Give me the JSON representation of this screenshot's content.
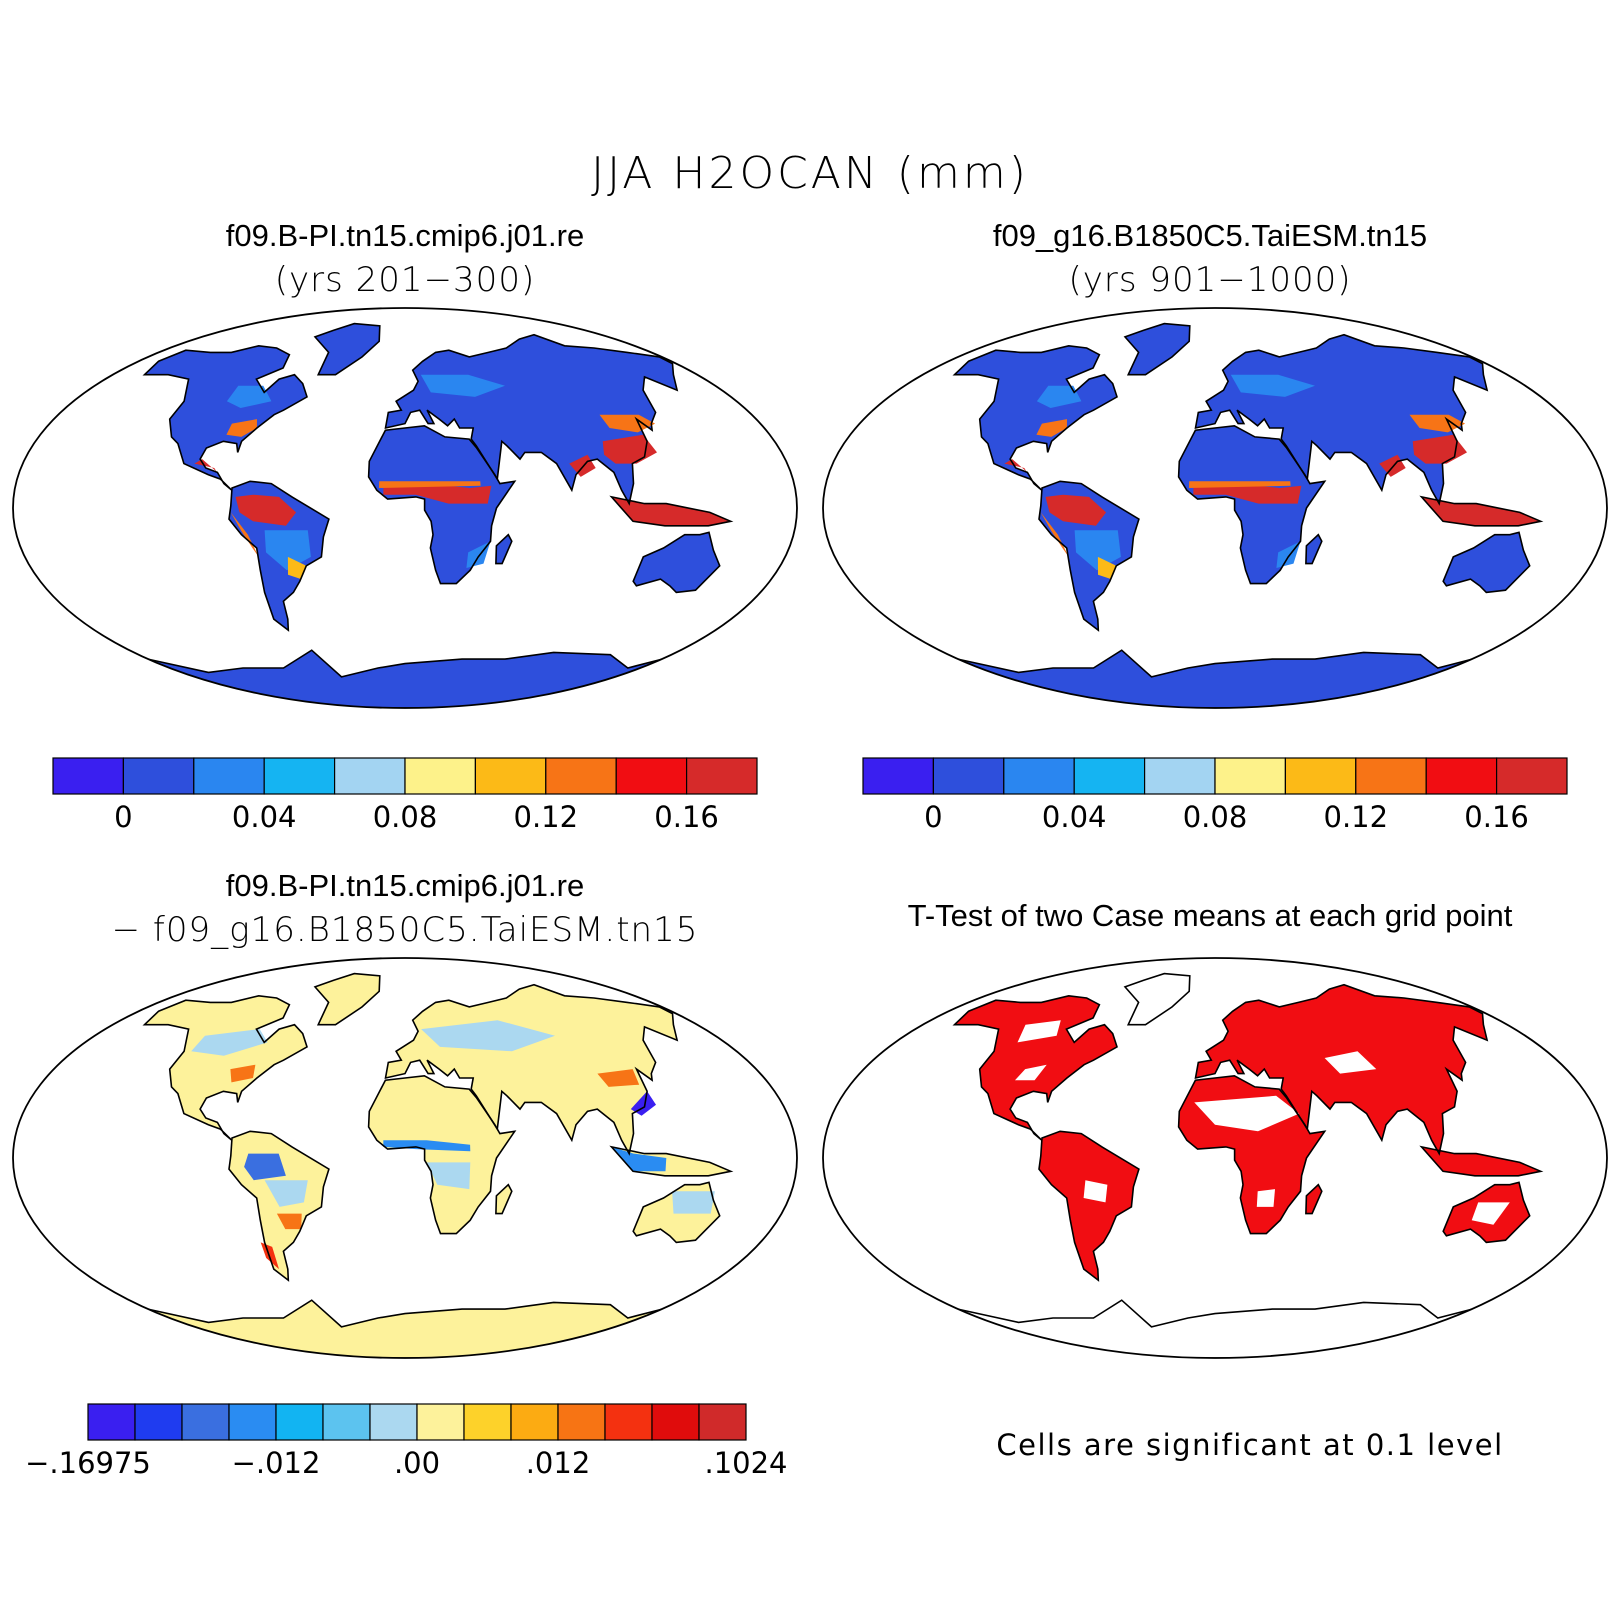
{
  "title": "JJA H2OCAN (mm)",
  "panels": [
    {
      "title": "f09.B-PI.tn15.cmip6.j01.re",
      "subtitle": "(yrs 201−300)",
      "map_fill": "case"
    },
    {
      "title": "f09_g16.B1850C5.TaiESM.tn15",
      "subtitle": "(yrs 901−1000)",
      "map_fill": "case"
    },
    {
      "title": "f09.B-PI.tn15.cmip6.j01.re",
      "subtitle": "− f09_g16.B1850C5.TaiESM.tn15",
      "map_fill": "difference"
    },
    {
      "title": "T-Test of two Case means at each grid point",
      "subtitle": "",
      "map_fill": "significance"
    }
  ],
  "colorbar_case": {
    "colors": [
      "#3a1ff0",
      "#2e4fdc",
      "#2a86f0",
      "#15b4f2",
      "#a3d4f2",
      "#fdf28a",
      "#fcba17",
      "#f77416",
      "#f10d12",
      "#d62a2a"
    ],
    "labels": [
      "0",
      "0.04",
      "0.08",
      "0.12",
      "0.16"
    ]
  },
  "colorbar_diff": {
    "colors": [
      "#3a1ff0",
      "#1f3cf0",
      "#3a6fe0",
      "#2a8cf2",
      "#12b4f2",
      "#5cc3ef",
      "#abd8f0",
      "#fdf29b",
      "#fdd22a",
      "#fcab12",
      "#f77414",
      "#f43110",
      "#e00c0c",
      "#d02a2a"
    ],
    "labels": [
      "−.16975",
      "−.012",
      ".00",
      ".012",
      ".1024"
    ]
  },
  "significance_note": "Cells are significant at 0.1 level",
  "colors": {
    "land_case": "#2e4fdc",
    "land_diff": "#fdf29b",
    "significant": "#f10d12"
  }
}
